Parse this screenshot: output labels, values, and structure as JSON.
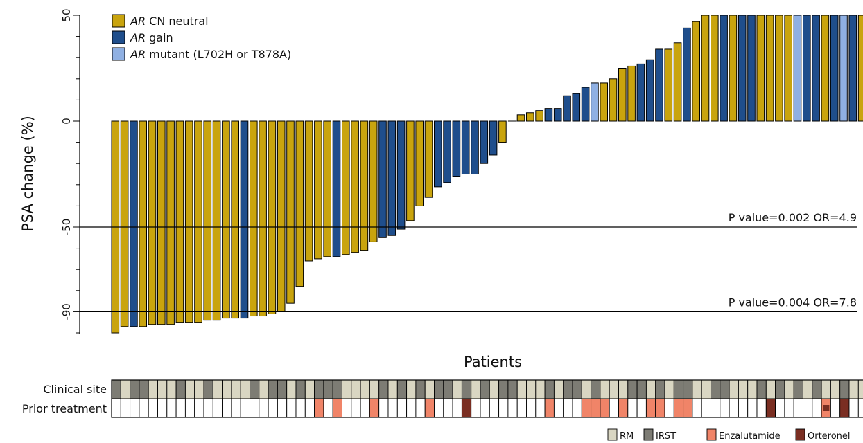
{
  "chart_data": {
    "type": "bar",
    "ylabel": "PSA change (%)",
    "xlabel": "Patients",
    "ylim": [
      -100,
      50
    ],
    "y_ticks": [
      "50",
      "0",
      "-50",
      "-90"
    ],
    "y_tick_values": [
      50,
      0,
      -50,
      -90
    ],
    "series": [
      {
        "name": "AR CN neutral",
        "label_prefix": "AR",
        "label_rest": " CN neutral",
        "color": "#C9A40E"
      },
      {
        "name": "AR gain",
        "label_prefix": "AR",
        "label_rest": " gain",
        "color": "#1F4E8C"
      },
      {
        "name": "AR mutant (L702H or T878A)",
        "label_prefix": "AR",
        "label_rest": " mutant (L702H or T878A)",
        "color": "#8FB0E3"
      }
    ],
    "values": [
      -100,
      -97,
      -97,
      -97,
      -96,
      -96,
      -96,
      -95,
      -95,
      -95,
      -94,
      -94,
      -93,
      -93,
      -93,
      -92,
      -92,
      -91,
      -90,
      -86,
      -78,
      -66,
      -65,
      -64,
      -64,
      -63,
      -62,
      -61,
      -57,
      -55,
      -54,
      -51,
      -47,
      -40,
      -36,
      -31,
      -29,
      -26,
      -25,
      -25,
      -20,
      -16,
      -10,
      0,
      3,
      4,
      5,
      6,
      6,
      12,
      13,
      16,
      18,
      18,
      20,
      25,
      26,
      27,
      29,
      34,
      34,
      37,
      44,
      47,
      50,
      50,
      50,
      50,
      50,
      50,
      50,
      50,
      50,
      50,
      50,
      50,
      50,
      50,
      50,
      50,
      50,
      50,
      50
    ],
    "groups": [
      0,
      0,
      1,
      0,
      0,
      0,
      0,
      0,
      0,
      0,
      0,
      0,
      0,
      0,
      1,
      0,
      0,
      0,
      0,
      0,
      0,
      0,
      0,
      0,
      1,
      0,
      0,
      0,
      0,
      1,
      1,
      1,
      0,
      0,
      0,
      1,
      1,
      1,
      1,
      1,
      1,
      1,
      0,
      0,
      0,
      0,
      0,
      1,
      1,
      1,
      1,
      1,
      2,
      0,
      0,
      0,
      0,
      1,
      1,
      1,
      0,
      0,
      1,
      0,
      0,
      0,
      1,
      0,
      1,
      1,
      0,
      0,
      0,
      0,
      2,
      1,
      1,
      0,
      1,
      2,
      1,
      0,
      1
    ],
    "reference_lines": [
      {
        "y": -50,
        "label": "P value=0.002  OR=4.9"
      },
      {
        "y": -90,
        "label": "P value=0.004  OR=7.8"
      }
    ],
    "tracks": {
      "clinical_site": {
        "label": "Clinical site",
        "values": [
          1,
          0,
          1,
          1,
          0,
          0,
          0,
          1,
          0,
          0,
          1,
          0,
          0,
          0,
          0,
          1,
          0,
          1,
          1,
          0,
          1,
          0,
          1,
          1,
          1,
          0,
          0,
          0,
          0,
          1,
          0,
          1,
          0,
          1,
          0,
          1,
          1,
          0,
          1,
          0,
          1,
          0,
          1,
          1,
          0,
          0,
          0,
          1,
          0,
          1,
          1,
          0,
          1,
          0,
          0,
          0,
          1,
          1,
          0,
          1,
          0,
          1,
          1,
          0,
          0,
          1,
          1,
          0,
          0,
          0,
          1,
          0,
          1,
          0,
          1,
          0,
          1,
          0,
          0,
          1,
          0,
          0,
          1
        ]
      },
      "prior_treatment": {
        "label": "Prior treatment",
        "values": [
          0,
          0,
          0,
          0,
          0,
          0,
          0,
          0,
          0,
          0,
          0,
          0,
          0,
          0,
          0,
          0,
          0,
          0,
          0,
          0,
          0,
          0,
          1,
          0,
          1,
          0,
          0,
          0,
          1,
          0,
          0,
          0,
          0,
          0,
          1,
          0,
          0,
          0,
          2,
          0,
          0,
          0,
          0,
          0,
          0,
          0,
          0,
          1,
          0,
          0,
          0,
          1,
          1,
          1,
          0,
          1,
          0,
          0,
          1,
          1,
          0,
          1,
          1,
          0,
          0,
          0,
          0,
          0,
          0,
          0,
          0,
          2,
          0,
          0,
          0,
          0,
          0,
          3,
          0,
          2,
          0,
          0,
          1
        ]
      }
    },
    "key": [
      {
        "label": "RM",
        "color": "#D9D6C2"
      },
      {
        "label": "IRST",
        "color": "#7D7C74"
      },
      {
        "label": "Enzalutamide",
        "color": "#F08468"
      },
      {
        "label": "Orteronel",
        "color": "#7A2E22"
      }
    ],
    "track_colors": {
      "clinical_site": [
        "#D9D6C2",
        "#7D7C74"
      ],
      "prior_treatment": [
        "#FFFFFF",
        "#F08468",
        "#7A2E22",
        "#F08468"
      ]
    },
    "grid": false,
    "legend_position": "top-left"
  }
}
